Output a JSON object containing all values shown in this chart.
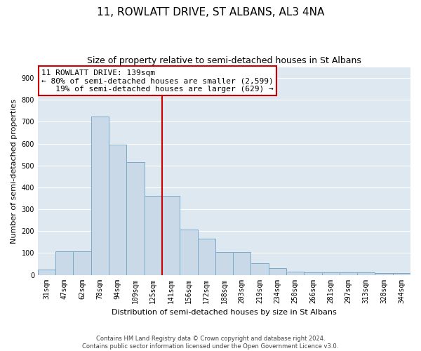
{
  "title": "11, ROWLATT DRIVE, ST ALBANS, AL3 4NA",
  "subtitle": "Size of property relative to semi-detached houses in St Albans",
  "xlabel": "Distribution of semi-detached houses by size in St Albans",
  "ylabel": "Number of semi-detached properties",
  "categories": [
    "31sqm",
    "47sqm",
    "62sqm",
    "78sqm",
    "94sqm",
    "109sqm",
    "125sqm",
    "141sqm",
    "156sqm",
    "172sqm",
    "188sqm",
    "203sqm",
    "219sqm",
    "234sqm",
    "250sqm",
    "266sqm",
    "281sqm",
    "297sqm",
    "313sqm",
    "328sqm",
    "344sqm"
  ],
  "values": [
    25,
    107,
    107,
    725,
    595,
    515,
    360,
    360,
    208,
    165,
    103,
    103,
    52,
    32,
    16,
    12,
    12,
    10,
    10,
    7,
    7
  ],
  "bar_color": "#c9d9e8",
  "bar_edge_color": "#7aaac8",
  "bg_color": "#dde8f0",
  "grid_color": "#ffffff",
  "property_line_color": "#cc0000",
  "property_line_bar_index": 7,
  "annotation_line1": "11 ROWLATT DRIVE: 139sqm",
  "annotation_line2": "← 80% of semi-detached houses are smaller (2,599)",
  "annotation_line3": "   19% of semi-detached houses are larger (629) →",
  "annotation_box_color": "#ffffff",
  "annotation_box_edge_color": "#cc0000",
  "ylim": [
    0,
    950
  ],
  "yticks": [
    0,
    100,
    200,
    300,
    400,
    500,
    600,
    700,
    800,
    900
  ],
  "footer": "Contains HM Land Registry data © Crown copyright and database right 2024.\nContains public sector information licensed under the Open Government Licence v3.0.",
  "title_fontsize": 11,
  "subtitle_fontsize": 9,
  "axis_label_fontsize": 8,
  "tick_fontsize": 7,
  "annotation_fontsize": 8
}
